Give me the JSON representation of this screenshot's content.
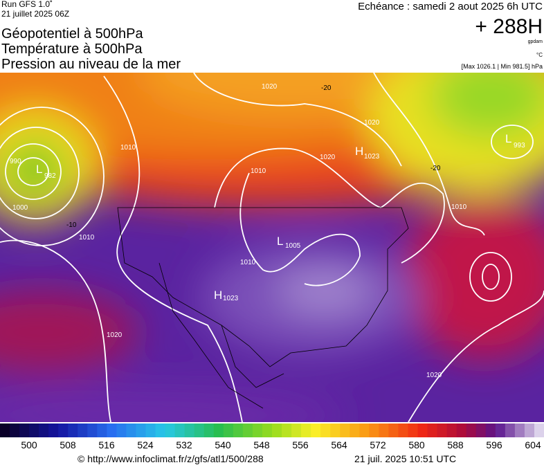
{
  "header": {
    "run": "Run GFS 1.0˚",
    "run_date": "21 juillet 2025 06Z",
    "titles": [
      "Géopotentiel à 500hPa",
      "Température à 500hPa",
      "Pression au niveau de la mer"
    ],
    "echeance": "Echéance : samedi 2 aout 2025 6h UTC",
    "offset": "+ 288H",
    "unit_geo": "gpdam",
    "unit_temp": "°C",
    "range": "[Max 1026.1 | Min 981.5] hPa"
  },
  "map": {
    "centers": [
      {
        "kind": "L",
        "value": "982"
      },
      {
        "kind": "L",
        "value": "993"
      },
      {
        "kind": "H",
        "value": "1023"
      },
      {
        "kind": "L",
        "value": "1005"
      },
      {
        "kind": "H",
        "value": "1023"
      }
    ],
    "isobar_labels": [
      "990",
      "1000",
      "1010",
      "1010",
      "1020",
      "1020",
      "1020",
      "1010",
      "1010",
      "1020",
      "1020",
      "1010"
    ],
    "temp_labels": [
      "-20",
      "-20",
      "-10"
    ]
  },
  "colorbar": {
    "ticks": [
      "500",
      "508",
      "516",
      "524",
      "532",
      "540",
      "548",
      "556",
      "564",
      "572",
      "580",
      "588",
      "596",
      "604"
    ]
  },
  "footer": {
    "url": "© http://www.infoclimat.fr/z/gfs/atl1/500/288",
    "timestamp": "21 juil. 2025 10:51 UTC"
  }
}
